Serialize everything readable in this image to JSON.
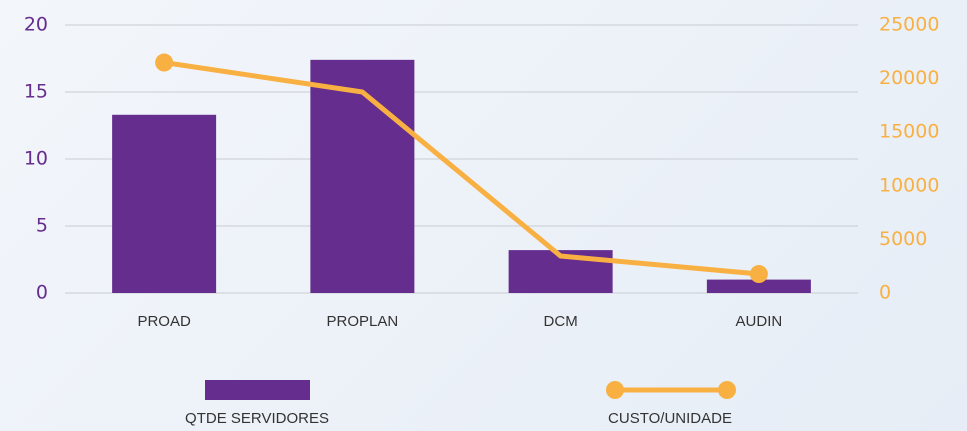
{
  "chart_data": {
    "type": "bar_line",
    "categories": [
      "PROAD",
      "PROPLAN",
      "DCM",
      "AUDIN"
    ],
    "series": [
      {
        "name": "QTDE SERVIDORES",
        "color": "#652d8e",
        "type": "bar",
        "values": [
          13.3,
          17.4,
          3.2,
          1
        ]
      },
      {
        "name": "CUSTO/UNIDADE",
        "color": "#f9b043",
        "type": "line",
        "axis": "y2",
        "values": [
          21500,
          18750,
          3450,
          1770
        ]
      }
    ],
    "ylim": [
      0,
      20
    ],
    "yticks": [
      0,
      5,
      10,
      15,
      20
    ],
    "y2lim": [
      0,
      25000
    ],
    "y2ticks": [
      0,
      5000,
      10000,
      15000,
      20000,
      25000
    ],
    "grid": true,
    "legend": "bottom"
  }
}
